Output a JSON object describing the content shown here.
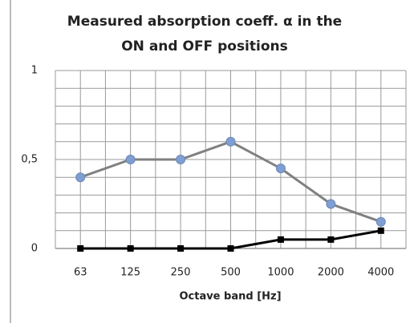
{
  "chart_data": {
    "type": "line",
    "title": [
      "Measured absorption coeff. α in the",
      "ON and OFF positions"
    ],
    "x_label": "Octave band [Hz]",
    "categories": [
      "63",
      "125",
      "250",
      "500",
      "1000",
      "2000",
      "4000"
    ],
    "series": [
      {
        "color": "#808080",
        "marker_color": "#7f9fd3",
        "marker": "circle",
        "values": [
          0.4,
          0.5,
          0.5,
          0.6,
          0.45,
          0.25,
          0.15
        ]
      },
      {
        "color": "#000000",
        "marker_color": "#000000",
        "marker": "square",
        "values": [
          0,
          0,
          0,
          0,
          0.05,
          0.05,
          0.1
        ]
      }
    ],
    "ylim": [
      0,
      1
    ],
    "yticks": [
      0,
      {
        "value": 0.5,
        "label": "0,5"
      },
      1
    ],
    "minor_yticks": [
      0.1,
      0.2,
      0.3,
      0.4,
      0.6,
      0.7,
      0.8,
      0.9
    ],
    "grid": true
  }
}
